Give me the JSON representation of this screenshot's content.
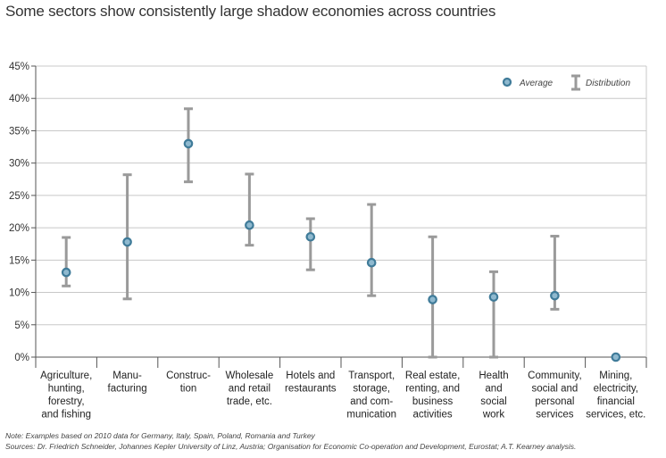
{
  "title": "Some sectors show consistently large shadow economies across countries",
  "notes": {
    "line1": "Note: Examples based on 2010 data for Germany, Italy, Spain, Poland, Romania and Turkey",
    "line2": "Sources: Dr. Friedrich Schneider, Johannes Kepler University of Linz, Austria; Organisation for Economic Co-operation and Development, Eurostat; A.T. Kearney analysis."
  },
  "legend": {
    "average": "Average",
    "distribution": "Distribution"
  },
  "colors": {
    "marker_fill": "#8fb9cf",
    "marker_stroke": "#3f7b99",
    "errorbar": "#9a9a9a",
    "grid": "#c8c8c8",
    "axis": "#555555"
  },
  "chart_data": {
    "type": "errorbar",
    "title": "Some sectors show consistently large shadow economies across countries",
    "ylabel": "",
    "xlabel": "",
    "ylim": [
      0,
      45
    ],
    "yticks": [
      0,
      5,
      10,
      15,
      20,
      25,
      30,
      35,
      40,
      45
    ],
    "ytick_labels": [
      "0%",
      "5%",
      "10%",
      "15%",
      "20%",
      "25%",
      "30%",
      "35%",
      "40%",
      "45%"
    ],
    "grid": true,
    "legend_position": "top-right",
    "categories": [
      [
        "Agriculture,",
        "hunting,",
        "forestry,",
        "and fishing"
      ],
      [
        "Manu-",
        "facturing"
      ],
      [
        "Construc-",
        "tion"
      ],
      [
        "Wholesale",
        "and retail",
        "trade, etc."
      ],
      [
        "Hotels and",
        "restaurants"
      ],
      [
        "Transport,",
        "storage,",
        "and com-",
        "munication"
      ],
      [
        "Real estate,",
        "renting, and",
        "business",
        "activities"
      ],
      [
        "Health",
        "and",
        "social",
        "work"
      ],
      [
        "Community,",
        "social and",
        "personal",
        "services"
      ],
      [
        "Mining,",
        "electricity,",
        "financial",
        "services, etc."
      ]
    ],
    "series": [
      {
        "name": "Average",
        "values": [
          13.1,
          17.8,
          33.0,
          20.4,
          18.6,
          14.6,
          8.9,
          9.3,
          9.5,
          0.0
        ]
      },
      {
        "name": "Distribution min",
        "values": [
          11.0,
          9.0,
          27.1,
          17.3,
          13.5,
          9.5,
          0.0,
          0.0,
          7.4,
          0.0
        ]
      },
      {
        "name": "Distribution max",
        "values": [
          18.5,
          28.2,
          38.4,
          28.3,
          21.4,
          23.6,
          18.6,
          13.2,
          18.7,
          0.0
        ]
      }
    ]
  }
}
